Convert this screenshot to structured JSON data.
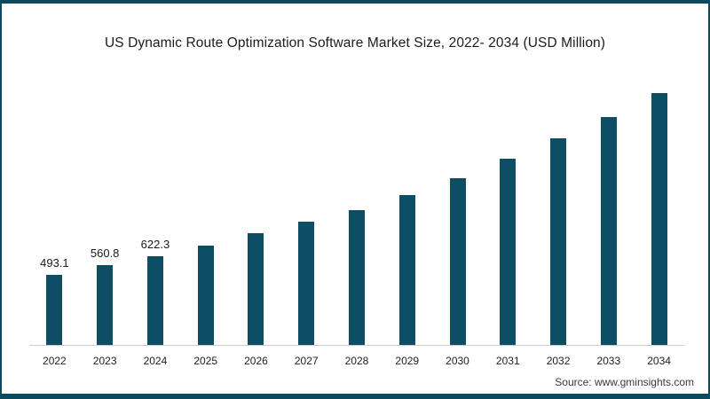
{
  "page": {
    "background": "#ffffff",
    "border_color": "#0c4a5e"
  },
  "chart_data": {
    "type": "bar",
    "title": "US Dynamic Route Optimization Software Market Size, 2022- 2034 (USD Million)",
    "categories": [
      "2022",
      "2023",
      "2024",
      "2025",
      "2026",
      "2027",
      "2028",
      "2029",
      "2030",
      "2031",
      "2032",
      "2033",
      "2034"
    ],
    "values": [
      493.1,
      560.8,
      622.3,
      700,
      785,
      865,
      950,
      1050,
      1170,
      1310,
      1450,
      1600,
      1770
    ],
    "data_labels": [
      "493.1",
      "560.8",
      "622.3",
      "",
      "",
      "",
      "",
      "",
      "",
      "",
      "",
      "",
      ""
    ],
    "bar_color": "#0e4e64",
    "axis_line_color": "#cccccc",
    "ylim": [
      0,
      1925
    ],
    "xlabel": "",
    "ylabel": "",
    "grid": false,
    "legend_position": "none"
  },
  "source": {
    "label": "Source: www.gminsights.com"
  }
}
